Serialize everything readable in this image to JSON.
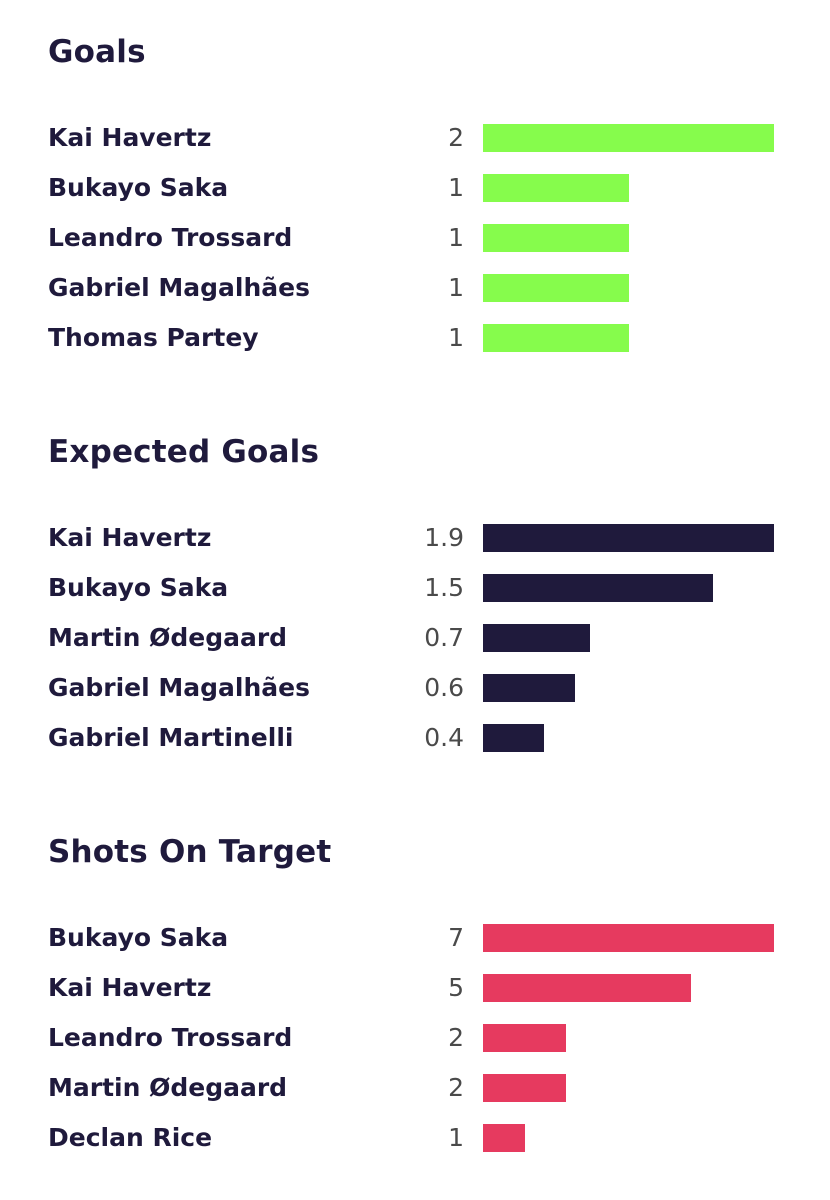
{
  "chart_data": [
    {
      "type": "bar",
      "orientation": "horizontal",
      "title": "Goals",
      "color": "#86fc4c",
      "categories": [
        "Kai Havertz",
        "Bukayo Saka",
        "Leandro Trossard",
        "Gabriel Magalhães",
        "Thomas Partey"
      ],
      "values": [
        2,
        1,
        1,
        1,
        1
      ],
      "labels": [
        "2",
        "1",
        "1",
        "1",
        "1"
      ]
    },
    {
      "type": "bar",
      "orientation": "horizontal",
      "title": "Expected Goals",
      "color": "#1f1a3c",
      "categories": [
        "Kai Havertz",
        "Bukayo Saka",
        "Martin Ødegaard",
        "Gabriel Magalhães",
        "Gabriel Martinelli"
      ],
      "values": [
        1.9,
        1.5,
        0.7,
        0.6,
        0.4
      ],
      "labels": [
        "1.9",
        "1.5",
        "0.7",
        "0.6",
        "0.4"
      ]
    },
    {
      "type": "bar",
      "orientation": "horizontal",
      "title": "Shots On Target",
      "color": "#e63a5f",
      "categories": [
        "Bukayo Saka",
        "Kai Havertz",
        "Leandro Trossard",
        "Martin Ødegaard",
        "Declan Rice"
      ],
      "values": [
        7,
        5,
        2,
        2,
        1
      ],
      "labels": [
        "7",
        "5",
        "2",
        "2",
        "1"
      ]
    }
  ]
}
